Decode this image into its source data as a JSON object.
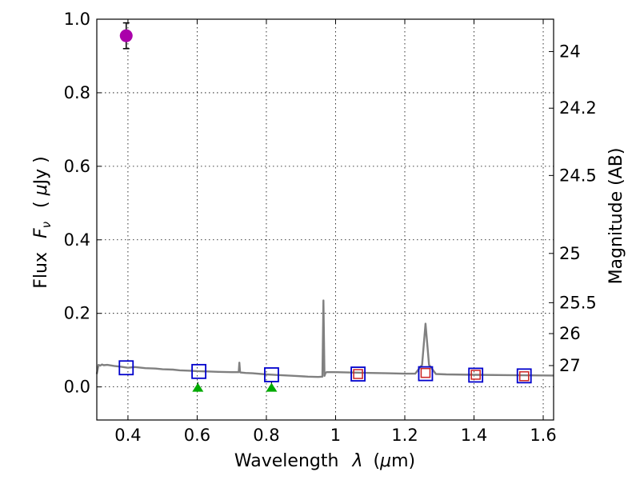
{
  "chart_data": {
    "type": "scatter",
    "xlabel": "Wavelength",
    "xlabel_symbol": "λ",
    "xlabel_unit_open": "(",
    "xlabel_unit_mu": "μ",
    "xlabel_unit_rest": "m)",
    "ylabel": "Flux",
    "ylabel_symbol_F": "F",
    "ylabel_symbol_nu": "ν",
    "ylabel_unit_open": "( ",
    "ylabel_unit_mu": "μ",
    "ylabel_unit_rest": "Jy )",
    "ylabel_right": "Magnitude (AB)",
    "xlim": [
      0.31,
      1.63
    ],
    "ylim": [
      -0.09,
      1.0
    ],
    "grid": true,
    "x_ticks": [
      0.4,
      0.6,
      0.8,
      1.0,
      1.2,
      1.4,
      1.6
    ],
    "x_tick_labels": [
      "0.4",
      "0.6",
      "0.8",
      "1",
      "1.2",
      "1.4",
      "1.6"
    ],
    "y_ticks": [
      0.0,
      0.2,
      0.4,
      0.6,
      0.8,
      1.0
    ],
    "y_tick_labels": [
      "0.0",
      "0.2",
      "0.4",
      "0.6",
      "0.8",
      "1.0"
    ],
    "right_ticks": [
      {
        "label": "24",
        "flux": 0.912
      },
      {
        "label": "24.2",
        "flux": 0.758
      },
      {
        "label": "24.5",
        "flux": 0.575
      },
      {
        "label": "25",
        "flux": 0.363
      },
      {
        "label": "25.5",
        "flux": 0.229
      },
      {
        "label": "26",
        "flux": 0.145
      },
      {
        "label": "27",
        "flux": 0.058
      }
    ],
    "colors": {
      "spectrum": "#808080",
      "model_box": "#0000cc",
      "observed_box": "#cc2222",
      "measurement": "#aa00aa",
      "upper_limit": "#00aa00",
      "errorbar": "#000000"
    },
    "series": [
      {
        "name": "model spectrum",
        "type": "line",
        "x": [
          0.31,
          0.315,
          0.32,
          0.325,
          0.33,
          0.34,
          0.36,
          0.38,
          0.4,
          0.42,
          0.45,
          0.48,
          0.5,
          0.53,
          0.55,
          0.58,
          0.6,
          0.63,
          0.66,
          0.7,
          0.72,
          0.722,
          0.724,
          0.726,
          0.728,
          0.74,
          0.76,
          0.8,
          0.84,
          0.88,
          0.92,
          0.95,
          0.962,
          0.965,
          0.968,
          0.971,
          0.974,
          1.0,
          1.05,
          1.1,
          1.15,
          1.2,
          1.23,
          1.25,
          1.26,
          1.27,
          1.29,
          1.32,
          1.4,
          1.5,
          1.63
        ],
        "y": [
          0.035,
          0.06,
          0.058,
          0.061,
          0.059,
          0.06,
          0.057,
          0.055,
          0.052,
          0.054,
          0.051,
          0.05,
          0.048,
          0.047,
          0.045,
          0.044,
          0.043,
          0.042,
          0.041,
          0.04,
          0.04,
          0.066,
          0.04,
          0.039,
          0.039,
          0.038,
          0.037,
          0.034,
          0.032,
          0.03,
          0.028,
          0.027,
          0.028,
          0.235,
          0.03,
          0.038,
          0.04,
          0.04,
          0.039,
          0.038,
          0.037,
          0.036,
          0.036,
          0.06,
          0.172,
          0.06,
          0.035,
          0.034,
          0.033,
          0.032,
          0.031
        ]
      },
      {
        "name": "model photometry",
        "type": "open-square",
        "x": [
          0.395,
          0.605,
          0.815,
          1.065,
          1.26,
          1.405,
          1.545
        ],
        "y": [
          0.052,
          0.042,
          0.033,
          0.035,
          0.036,
          0.032,
          0.03
        ]
      },
      {
        "name": "observed photometry",
        "type": "open-square-small",
        "x": [
          1.065,
          1.26,
          1.405,
          1.545
        ],
        "y": [
          0.035,
          0.038,
          0.033,
          0.029
        ]
      },
      {
        "name": "measurement",
        "type": "circle-errorbar",
        "x": [
          0.395
        ],
        "y": [
          0.955
        ],
        "yerr": [
          0.035
        ]
      },
      {
        "name": "upper limits",
        "type": "triangle",
        "x": [
          0.602,
          0.815
        ],
        "y": [
          0.0,
          0.0
        ]
      }
    ]
  }
}
